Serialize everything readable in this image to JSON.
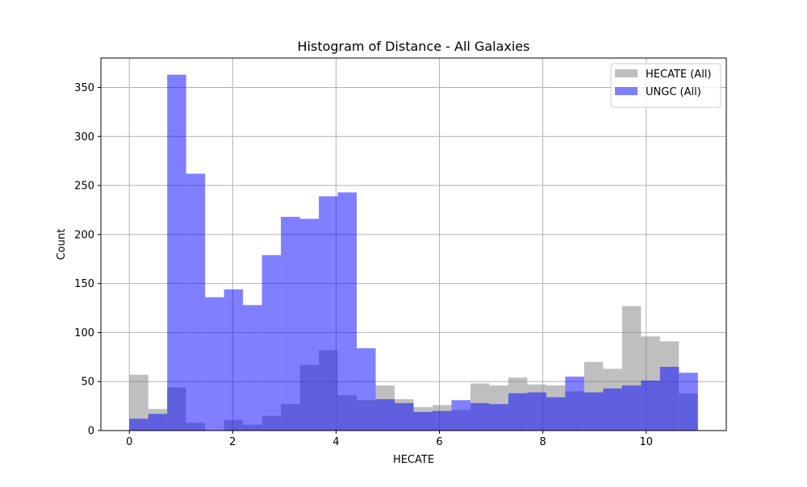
{
  "chart_data": {
    "type": "bar",
    "title": "Histogram of Distance - All Galaxies",
    "xlabel": "HECATE",
    "ylabel": "Count",
    "xlim": [
      -0.55,
      11.55
    ],
    "ylim": [
      0,
      380
    ],
    "xticks": [
      0,
      2,
      4,
      6,
      8,
      10
    ],
    "yticks": [
      0,
      50,
      100,
      150,
      200,
      250,
      300,
      350
    ],
    "grid": true,
    "legend_position": "top-right",
    "bin_edges": [
      0,
      0.367,
      0.733,
      1.1,
      1.467,
      1.833,
      2.2,
      2.567,
      2.933,
      3.3,
      3.667,
      4.033,
      4.4,
      4.767,
      5.133,
      5.5,
      5.867,
      6.233,
      6.6,
      6.967,
      7.333,
      7.7,
      8.067,
      8.433,
      8.8,
      9.167,
      9.533,
      9.9,
      10.267,
      10.633,
      11.0
    ],
    "series": [
      {
        "name": "HECATE (All)",
        "color": "#808080",
        "opacity": 0.5,
        "values": [
          57,
          22,
          44,
          8,
          0,
          11,
          6,
          15,
          27,
          67,
          82,
          36,
          31,
          46,
          32,
          24,
          26,
          21,
          48,
          46,
          54,
          47,
          46,
          40,
          70,
          63,
          127,
          96,
          91,
          38
        ]
      },
      {
        "name": "UNGC (All)",
        "color": "#0000ff",
        "opacity": 0.5,
        "values": [
          12,
          17,
          363,
          262,
          136,
          144,
          128,
          179,
          218,
          216,
          239,
          243,
          84,
          32,
          28,
          19,
          20,
          31,
          28,
          27,
          38,
          39,
          34,
          55,
          39,
          43,
          46,
          51,
          65,
          59
        ]
      }
    ]
  }
}
